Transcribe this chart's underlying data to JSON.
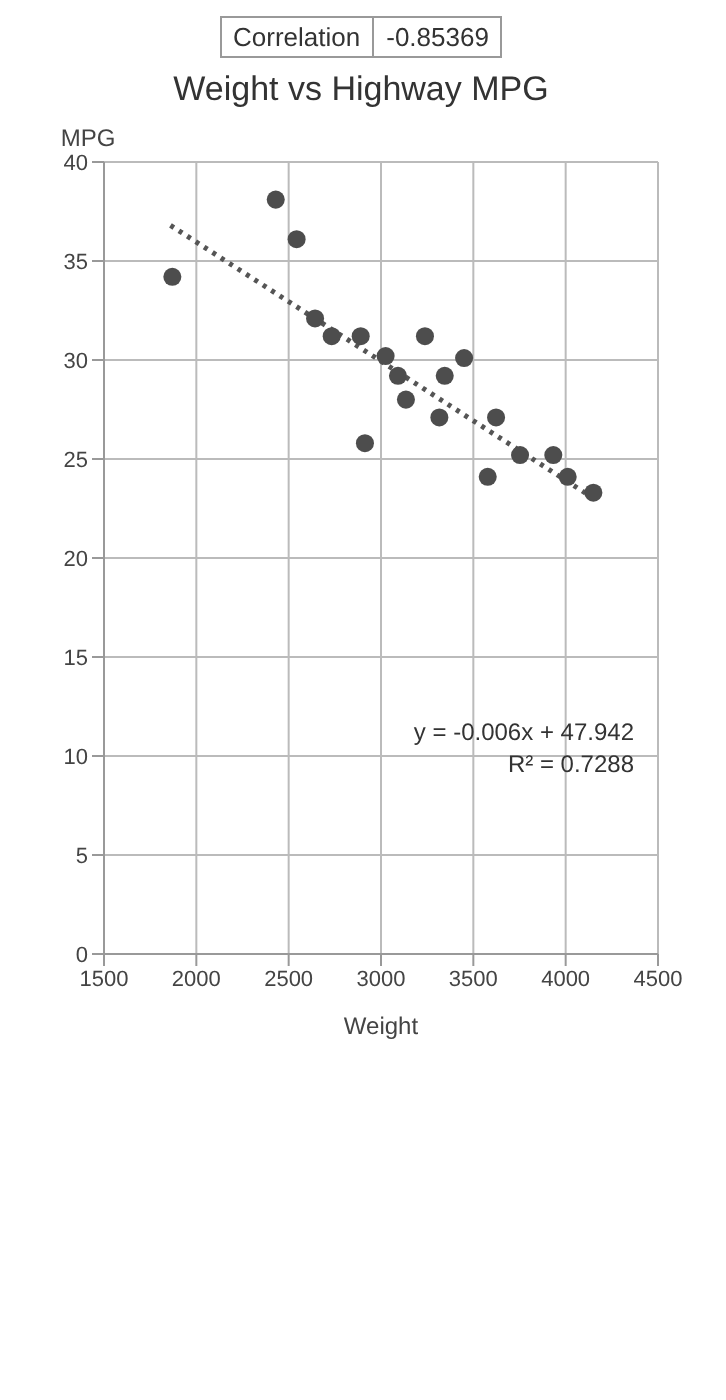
{
  "chart_data": {
    "type": "scatter",
    "title": "Weight vs Highway MPG",
    "xlabel": "Weight",
    "ylabel": "MPG",
    "annotations": [
      "Correlation",
      "-0.85369",
      "y = -0.006x + 47.942",
      "R² = 0.7288"
    ],
    "series": [
      {
        "color": "#4d4d4d",
        "marker": "circle",
        "x": [
          1870,
          2430,
          2543,
          2643,
          2733,
          2890,
          2913,
          3025,
          3092,
          3135,
          3238,
          3316,
          3345,
          3450,
          3578,
          3623,
          3753,
          3933,
          4011,
          4150
        ],
        "values": [
          34.2,
          38.1,
          36.1,
          32.1,
          31.2,
          31.2,
          25.8,
          30.2,
          29.2,
          28.0,
          31.2,
          27.1,
          29.2,
          30.1,
          24.1,
          27.1,
          25.2,
          25.2,
          24.1,
          23.3
        ]
      },
      {
        "type": "line",
        "color": "#555555",
        "line_style": "dotted",
        "marker": "none",
        "x": [
          1860,
          4120
        ],
        "values": [
          36.8,
          23.2
        ]
      }
    ],
    "xlim": [
      1500,
      4500
    ],
    "xticks": [
      1500,
      2000,
      2500,
      3000,
      3500,
      4000,
      4500
    ],
    "ylim": [
      0,
      40
    ],
    "yticks": [
      0,
      5,
      10,
      15,
      20,
      25,
      30,
      35,
      40
    ],
    "grid": true
  }
}
